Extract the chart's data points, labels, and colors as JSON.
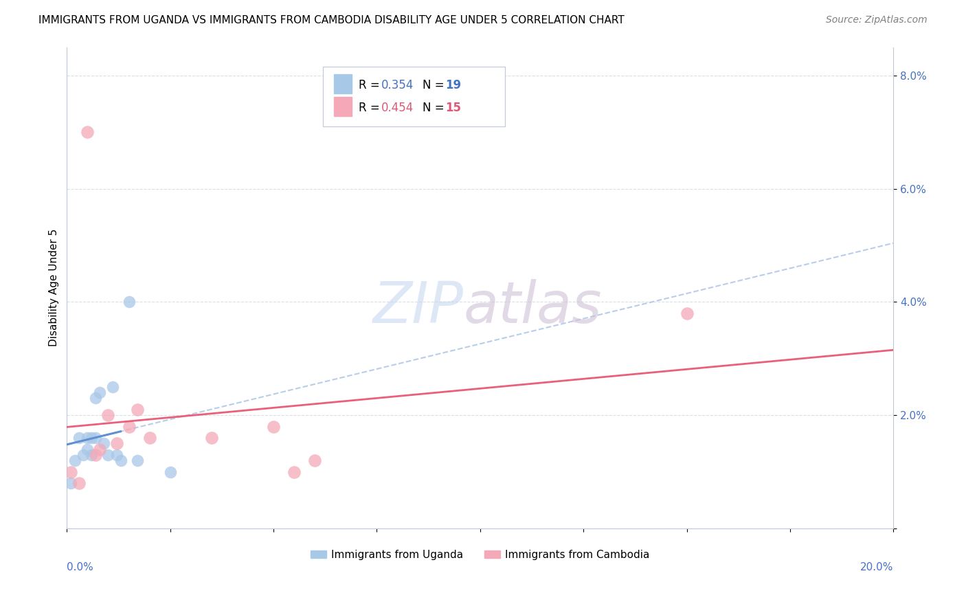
{
  "title": "IMMIGRANTS FROM UGANDA VS IMMIGRANTS FROM CAMBODIA DISABILITY AGE UNDER 5 CORRELATION CHART",
  "source": "Source: ZipAtlas.com",
  "ylabel": "Disability Age Under 5",
  "xlim": [
    0.0,
    0.2
  ],
  "ylim": [
    0.0,
    0.085
  ],
  "yticks": [
    0.0,
    0.02,
    0.04,
    0.06,
    0.08
  ],
  "ytick_labels": [
    "",
    "2.0%",
    "4.0%",
    "6.0%",
    "8.0%"
  ],
  "uganda_color": "#a8c8e8",
  "cambodia_color": "#f4a8b8",
  "uganda_line_color": "#6090d0",
  "cambodia_line_color": "#e8607a",
  "uganda_r": 0.354,
  "uganda_n": 19,
  "cambodia_r": 0.454,
  "cambodia_n": 15,
  "uganda_x": [
    0.001,
    0.002,
    0.003,
    0.004,
    0.005,
    0.005,
    0.006,
    0.006,
    0.007,
    0.007,
    0.008,
    0.009,
    0.01,
    0.011,
    0.012,
    0.013,
    0.015,
    0.017,
    0.025
  ],
  "uganda_y": [
    0.008,
    0.012,
    0.016,
    0.013,
    0.014,
    0.016,
    0.013,
    0.016,
    0.016,
    0.023,
    0.024,
    0.015,
    0.013,
    0.025,
    0.013,
    0.012,
    0.04,
    0.012,
    0.01
  ],
  "cambodia_x": [
    0.001,
    0.003,
    0.005,
    0.007,
    0.008,
    0.01,
    0.012,
    0.015,
    0.017,
    0.02,
    0.035,
    0.05,
    0.055,
    0.06,
    0.15
  ],
  "cambodia_y": [
    0.01,
    0.008,
    0.07,
    0.013,
    0.014,
    0.02,
    0.015,
    0.018,
    0.021,
    0.016,
    0.016,
    0.018,
    0.01,
    0.012,
    0.038
  ],
  "uganda_line_x": [
    0.0,
    0.025
  ],
  "cambodia_line_x": [
    0.0,
    0.2
  ],
  "dashed_line_color": "#b0c8e8",
  "grid_color": "#d8dde8",
  "watermark_zip_color": "#c8d8f0",
  "watermark_atlas_color": "#d8c8d8",
  "legend_r_color_uganda": "#4472c4",
  "legend_n_color_uganda": "#4472c4",
  "legend_r_color_cambodia": "#e05878",
  "legend_n_color_cambodia": "#e05878"
}
